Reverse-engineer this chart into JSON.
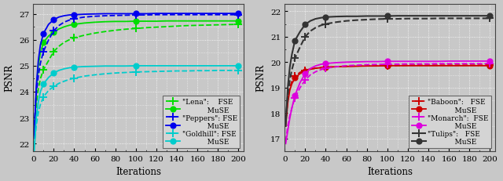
{
  "iterations": [
    1,
    3,
    5,
    7,
    10,
    15,
    20,
    25,
    30,
    35,
    40,
    50,
    60,
    70,
    80,
    90,
    100,
    110,
    120,
    130,
    140,
    150,
    160,
    170,
    180,
    190,
    200
  ],
  "left": {
    "ylabel": "PSNR",
    "xlabel": "Iterations",
    "ylim": [
      21.7,
      27.4
    ],
    "yticks": [
      22,
      23,
      24,
      25,
      26,
      27
    ],
    "xticks": [
      0,
      20,
      40,
      60,
      80,
      100,
      120,
      140,
      160,
      180,
      200
    ],
    "marker_iters": [
      10,
      20,
      40,
      100,
      200
    ],
    "series": [
      {
        "label": "\"Lena\":    FSE",
        "color": "#00dd00",
        "linestyle": "--",
        "marker": "+",
        "markersize": 7,
        "linewidth": 1.3,
        "values": [
          22.5,
          23.5,
          24.1,
          24.5,
          24.85,
          25.2,
          25.55,
          25.75,
          25.9,
          26.0,
          26.08,
          26.18,
          26.26,
          26.32,
          26.37,
          26.41,
          26.44,
          26.47,
          26.49,
          26.51,
          26.53,
          26.55,
          26.56,
          26.57,
          26.58,
          26.59,
          26.6
        ]
      },
      {
        "label": "           MuSE",
        "color": "#00dd00",
        "linestyle": "-",
        "marker": "o",
        "markersize": 4.5,
        "linewidth": 1.3,
        "values": [
          22.3,
          24.0,
          25.0,
          25.5,
          25.9,
          26.15,
          26.3,
          26.42,
          26.5,
          26.56,
          26.6,
          26.65,
          26.68,
          26.7,
          26.71,
          26.71,
          26.72,
          26.72,
          26.72,
          26.73,
          26.73,
          26.73,
          26.73,
          26.73,
          26.73,
          26.73,
          26.73
        ]
      },
      {
        "label": "\"Peppers\": FSE",
        "color": "#0000ee",
        "linestyle": "--",
        "marker": "+",
        "markersize": 7,
        "linewidth": 1.3,
        "values": [
          22.7,
          23.9,
          24.6,
          25.1,
          25.55,
          26.0,
          26.35,
          26.55,
          26.68,
          26.76,
          26.82,
          26.88,
          26.91,
          26.93,
          26.94,
          26.95,
          26.96,
          26.96,
          26.97,
          26.97,
          26.97,
          26.97,
          26.97,
          26.97,
          26.97,
          26.97,
          26.97
        ]
      },
      {
        "label": "           MuSE",
        "color": "#0000ee",
        "linestyle": "-",
        "marker": "o",
        "markersize": 4.5,
        "linewidth": 1.3,
        "values": [
          22.2,
          24.2,
          25.2,
          25.8,
          26.25,
          26.6,
          26.78,
          26.88,
          26.93,
          26.96,
          26.97,
          26.99,
          27.0,
          27.01,
          27.01,
          27.01,
          27.01,
          27.01,
          27.02,
          27.02,
          27.02,
          27.02,
          27.02,
          27.02,
          27.02,
          27.02,
          27.02
        ]
      },
      {
        "label": "\"Goldhill\": FSE",
        "color": "#00cccc",
        "linestyle": "--",
        "marker": "+",
        "markersize": 7,
        "linewidth": 1.3,
        "values": [
          21.9,
          22.7,
          23.2,
          23.5,
          23.8,
          24.05,
          24.2,
          24.32,
          24.4,
          24.47,
          24.52,
          24.6,
          24.65,
          24.69,
          24.72,
          24.74,
          24.76,
          24.77,
          24.78,
          24.79,
          24.8,
          24.8,
          24.81,
          24.81,
          24.82,
          24.82,
          24.82
        ]
      },
      {
        "label": "           MuSE",
        "color": "#00cccc",
        "linestyle": "-",
        "marker": "o",
        "markersize": 4.5,
        "linewidth": 1.3,
        "values": [
          21.7,
          23.0,
          23.6,
          24.0,
          24.3,
          24.55,
          24.72,
          24.82,
          24.88,
          24.92,
          24.95,
          24.97,
          24.98,
          24.99,
          24.99,
          24.99,
          25.0,
          25.0,
          25.0,
          25.0,
          25.0,
          25.0,
          25.0,
          25.0,
          25.0,
          25.0,
          25.0
        ]
      }
    ]
  },
  "right": {
    "ylabel": "PSNR",
    "xlabel": "Iterations",
    "ylim": [
      16.5,
      22.3
    ],
    "yticks": [
      17,
      18,
      19,
      20,
      21,
      22
    ],
    "xticks": [
      0,
      20,
      40,
      60,
      80,
      100,
      120,
      140,
      160,
      180,
      200
    ],
    "marker_iters": [
      10,
      20,
      40,
      100,
      200
    ],
    "series": [
      {
        "label": "\"Baboon\":   FSE",
        "color": "#cc0000",
        "linestyle": "--",
        "marker": "+",
        "markersize": 7,
        "linewidth": 1.3,
        "values": [
          17.6,
          18.5,
          19.0,
          19.25,
          19.45,
          19.6,
          19.68,
          19.73,
          19.76,
          19.78,
          19.8,
          19.82,
          19.84,
          19.85,
          19.86,
          19.86,
          19.87,
          19.87,
          19.88,
          19.88,
          19.88,
          19.88,
          19.88,
          19.88,
          19.88,
          19.88,
          19.88
        ]
      },
      {
        "label": "            MuSE",
        "color": "#cc0000",
        "linestyle": "-",
        "marker": "o",
        "markersize": 4.5,
        "linewidth": 1.3,
        "values": [
          17.5,
          18.4,
          18.9,
          19.15,
          19.38,
          19.55,
          19.65,
          19.72,
          19.76,
          19.78,
          19.8,
          19.82,
          19.83,
          19.84,
          19.85,
          19.85,
          19.86,
          19.86,
          19.86,
          19.86,
          19.86,
          19.86,
          19.86,
          19.86,
          19.86,
          19.86,
          19.86
        ]
      },
      {
        "label": "\"Monarch\":  FSE",
        "color": "#dd00dd",
        "linestyle": "--",
        "marker": "+",
        "markersize": 7,
        "linewidth": 1.3,
        "values": [
          16.9,
          17.5,
          17.9,
          18.2,
          18.6,
          19.0,
          19.3,
          19.5,
          19.62,
          19.7,
          19.76,
          19.82,
          19.86,
          19.88,
          19.9,
          19.91,
          19.92,
          19.92,
          19.93,
          19.93,
          19.93,
          19.94,
          19.94,
          19.94,
          19.94,
          19.94,
          19.94
        ]
      },
      {
        "label": "            MuSE",
        "color": "#dd00dd",
        "linestyle": "-",
        "marker": "o",
        "markersize": 4.5,
        "linewidth": 1.3,
        "values": [
          16.8,
          17.3,
          17.8,
          18.2,
          18.7,
          19.2,
          19.55,
          19.75,
          19.85,
          19.91,
          19.95,
          19.98,
          20.0,
          20.01,
          20.02,
          20.02,
          20.03,
          20.03,
          20.03,
          20.03,
          20.03,
          20.03,
          20.04,
          20.04,
          20.04,
          20.04,
          20.04
        ]
      },
      {
        "label": "\"Tulips\":   FSE",
        "color": "#333333",
        "linestyle": "--",
        "marker": "+",
        "markersize": 7,
        "linewidth": 1.5,
        "values": [
          17.7,
          18.7,
          19.3,
          19.7,
          20.15,
          20.6,
          21.0,
          21.22,
          21.35,
          21.44,
          21.5,
          21.57,
          21.62,
          21.65,
          21.67,
          21.69,
          21.7,
          21.7,
          21.71,
          21.71,
          21.71,
          21.72,
          21.72,
          21.72,
          21.72,
          21.72,
          21.72
        ]
      },
      {
        "label": "            MuSE",
        "color": "#333333",
        "linestyle": "-",
        "marker": "o",
        "markersize": 4.5,
        "linewidth": 1.5,
        "values": [
          17.5,
          19.0,
          19.8,
          20.3,
          20.85,
          21.2,
          21.48,
          21.62,
          21.7,
          21.74,
          21.77,
          21.79,
          21.8,
          21.8,
          21.81,
          21.81,
          21.81,
          21.82,
          21.82,
          21.82,
          21.82,
          21.82,
          21.82,
          21.82,
          21.82,
          21.82,
          21.82
        ]
      }
    ]
  },
  "bg_color": "#c8c8c8",
  "grid_color": "#ffffff",
  "font_family": "DejaVu Serif",
  "legend_fontsize": 6.5,
  "tick_fontsize": 7.5,
  "label_fontsize": 8.5
}
